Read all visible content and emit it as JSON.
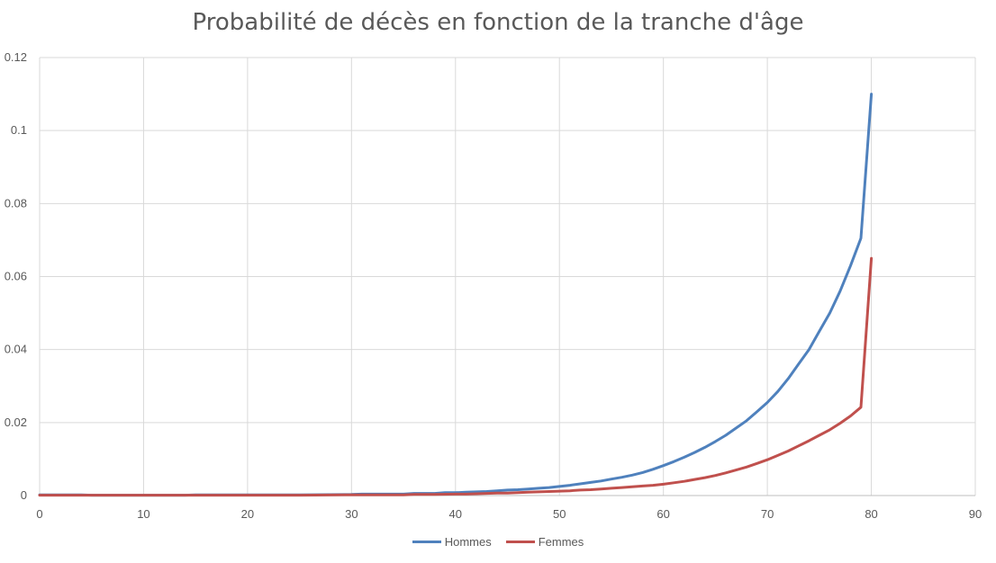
{
  "chart_data": {
    "type": "line",
    "title": "Probabilité de décès en fonction de la tranche d'âge",
    "xlim": [
      0,
      90
    ],
    "ylim": [
      0,
      0.12
    ],
    "x_ticks": [
      0,
      10,
      20,
      30,
      40,
      50,
      60,
      70,
      80,
      90
    ],
    "y_ticks": [
      0,
      0.02,
      0.04,
      0.06,
      0.08,
      0.1,
      0.12
    ],
    "y_tick_labels": [
      "0",
      "0.02",
      "0.04",
      "0.06",
      "0.08",
      "0.1",
      "0.12"
    ],
    "grid": true,
    "legend_position": "bottom",
    "series": [
      {
        "name": "Hommes",
        "color": "#4F81BD",
        "x": [
          0,
          1,
          2,
          3,
          4,
          5,
          10,
          14,
          15,
          20,
          25,
          30,
          31,
          35,
          36,
          38,
          39,
          40,
          41,
          42,
          43,
          44,
          45,
          46,
          47,
          48,
          49,
          50,
          51,
          52,
          53,
          54,
          55,
          56,
          57,
          58,
          59,
          60,
          61,
          62,
          63,
          64,
          65,
          66,
          67,
          68,
          69,
          70,
          71,
          72,
          73,
          74,
          75,
          76,
          77,
          78,
          79,
          80
        ],
        "y": [
          0.0002,
          0.0002,
          0.0002,
          0.0002,
          0.0002,
          0.0001,
          0.0001,
          0.0001,
          0.0002,
          0.0002,
          0.0002,
          0.0003,
          0.0004,
          0.0004,
          0.0006,
          0.0006,
          0.0008,
          0.0008,
          0.0009,
          0.001,
          0.0011,
          0.0013,
          0.0015,
          0.0016,
          0.0018,
          0.002,
          0.0022,
          0.0025,
          0.0028,
          0.0032,
          0.0036,
          0.004,
          0.0045,
          0.005,
          0.0056,
          0.0063,
          0.0072,
          0.0082,
          0.0093,
          0.0105,
          0.0118,
          0.0132,
          0.0148,
          0.0165,
          0.0185,
          0.0205,
          0.023,
          0.0255,
          0.0285,
          0.032,
          0.036,
          0.04,
          0.045,
          0.05,
          0.056,
          0.063,
          0.0705,
          0.11
        ]
      },
      {
        "name": "Femmes",
        "color": "#C0504D",
        "x": [
          0,
          1,
          2,
          3,
          4,
          5,
          10,
          14,
          15,
          20,
          25,
          30,
          35,
          36,
          38,
          40,
          41,
          42,
          43,
          44,
          45,
          46,
          47,
          48,
          49,
          50,
          51,
          52,
          53,
          54,
          55,
          56,
          57,
          58,
          59,
          60,
          61,
          62,
          63,
          64,
          65,
          66,
          67,
          68,
          69,
          70,
          71,
          72,
          73,
          74,
          75,
          76,
          77,
          78,
          79,
          80
        ],
        "y": [
          0.0001,
          0.0001,
          0.0001,
          0.0001,
          0.0001,
          0.0001,
          0.0001,
          0.0001,
          0.0001,
          0.0001,
          0.0001,
          0.0002,
          0.0002,
          0.0003,
          0.0003,
          0.0004,
          0.0004,
          0.0005,
          0.0006,
          0.0007,
          0.0007,
          0.0008,
          0.0009,
          0.001,
          0.0011,
          0.0012,
          0.0013,
          0.0015,
          0.0016,
          0.0018,
          0.002,
          0.0022,
          0.0024,
          0.0026,
          0.0028,
          0.0031,
          0.0035,
          0.0039,
          0.0044,
          0.0049,
          0.0055,
          0.0062,
          0.007,
          0.0078,
          0.0088,
          0.0098,
          0.011,
          0.0122,
          0.0136,
          0.015,
          0.0165,
          0.018,
          0.0198,
          0.0218,
          0.0242,
          0.065
        ]
      }
    ]
  }
}
